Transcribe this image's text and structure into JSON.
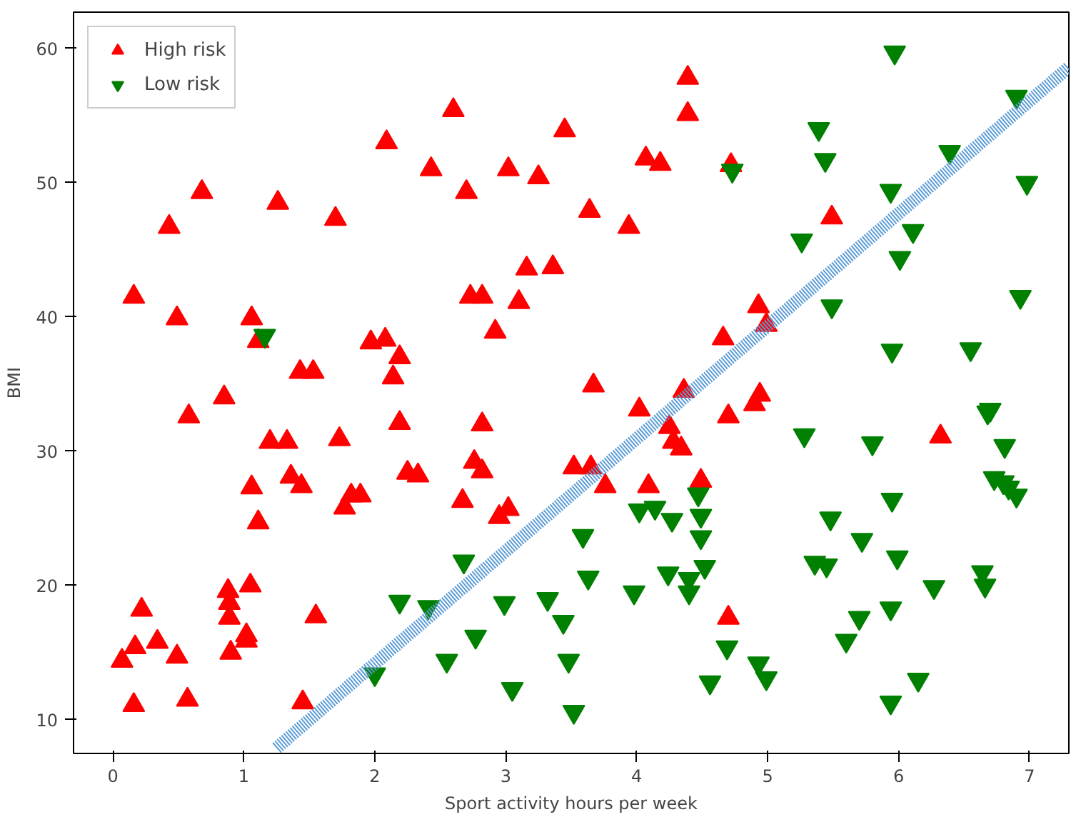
{
  "chart_data": {
    "type": "scatter",
    "xlabel": "Sport activity hours per week",
    "ylabel": "BMI",
    "xlim": [
      -0.3,
      7.3
    ],
    "ylim": [
      7.5,
      62.7
    ],
    "xticks": [
      0,
      1,
      2,
      3,
      4,
      5,
      6,
      7
    ],
    "yticks": [
      10,
      20,
      30,
      40,
      50,
      60
    ],
    "grid": false,
    "legend": "top left",
    "series": [
      {
        "name": "High risk",
        "color": "#ff0000",
        "marker": "triangle",
        "x": [
          0.07,
          0.17,
          0.16,
          0.22,
          0.16,
          0.34,
          0.49,
          0.57,
          0.43,
          0.49,
          0.58,
          0.68,
          0.85,
          0.88,
          0.89,
          0.89,
          0.9,
          1.02,
          1.05,
          1.02,
          1.06,
          1.06,
          1.11,
          1.11,
          1.2,
          1.26,
          1.33,
          1.36,
          1.44,
          1.43,
          1.53,
          1.45,
          1.55,
          1.7,
          1.73,
          1.77,
          1.82,
          1.89,
          1.97,
          2.08,
          2.09,
          2.14,
          2.19,
          2.19,
          2.25,
          2.33,
          2.43,
          2.6,
          2.7,
          2.67,
          2.73,
          2.82,
          2.76,
          2.82,
          2.82,
          2.92,
          2.95,
          3.02,
          3.02,
          3.1,
          3.16,
          3.25,
          3.36,
          3.45,
          3.52,
          3.64,
          3.65,
          3.67,
          3.76,
          3.94,
          4.02,
          4.07,
          4.09,
          4.18,
          4.25,
          4.28,
          4.34,
          4.36,
          4.39,
          4.39,
          4.49,
          4.72,
          4.7,
          4.66,
          4.7,
          4.9,
          4.94,
          4.93,
          4.99,
          5.49,
          6.32
        ],
        "values": [
          14.4,
          15.4,
          11.1,
          18.2,
          41.5,
          15.8,
          14.7,
          11.5,
          46.7,
          39.9,
          32.6,
          49.3,
          34.0,
          19.6,
          18.7,
          17.6,
          15.0,
          16.3,
          20.0,
          15.9,
          27.3,
          39.9,
          24.7,
          38.2,
          30.7,
          48.5,
          30.7,
          28.1,
          27.4,
          35.9,
          35.9,
          11.3,
          17.7,
          47.3,
          30.9,
          25.8,
          26.7,
          26.7,
          38.1,
          38.3,
          53.0,
          35.5,
          37.0,
          32.1,
          28.4,
          28.2,
          51.0,
          55.4,
          49.3,
          26.3,
          41.5,
          41.5,
          29.2,
          28.5,
          32.0,
          38.9,
          25.1,
          25.7,
          51.0,
          41.1,
          43.6,
          50.4,
          43.7,
          53.9,
          28.8,
          47.9,
          28.8,
          34.9,
          27.4,
          46.7,
          33.1,
          51.8,
          27.4,
          51.4,
          31.8,
          30.7,
          30.2,
          34.5,
          57.8,
          55.1,
          27.8,
          51.3,
          32.6,
          38.4,
          17.6,
          33.5,
          34.2,
          40.8,
          39.4,
          47.4,
          31.1
        ]
      },
      {
        "name": "Low risk",
        "color": "#008000",
        "marker": "triangle_down",
        "x": [
          1.16,
          2.0,
          2.19,
          2.41,
          2.55,
          2.68,
          2.77,
          2.99,
          3.05,
          3.32,
          3.44,
          3.48,
          3.52,
          3.59,
          3.63,
          3.98,
          4.02,
          4.14,
          4.24,
          4.27,
          4.4,
          4.4,
          4.47,
          4.49,
          4.49,
          4.52,
          4.56,
          4.69,
          4.73,
          4.93,
          4.99,
          5.26,
          5.28,
          5.39,
          5.44,
          5.36,
          5.45,
          5.48,
          5.49,
          5.6,
          5.7,
          5.72,
          5.8,
          5.97,
          5.94,
          5.95,
          5.95,
          5.94,
          5.94,
          5.99,
          6.01,
          6.11,
          6.15,
          6.39,
          6.27,
          6.55,
          6.64,
          6.66,
          6.68,
          6.7,
          6.73,
          6.8,
          6.81,
          6.84,
          6.9,
          6.9,
          6.93,
          6.98
        ],
        "values": [
          38.6,
          13.4,
          18.8,
          18.4,
          14.4,
          21.8,
          16.2,
          18.7,
          12.3,
          19.0,
          17.3,
          14.4,
          10.6,
          23.7,
          20.6,
          19.5,
          25.6,
          25.8,
          20.9,
          24.9,
          19.5,
          20.5,
          26.8,
          25.2,
          23.6,
          21.4,
          12.8,
          15.4,
          50.9,
          14.2,
          13.1,
          45.7,
          31.2,
          54.0,
          51.7,
          21.7,
          21.5,
          25.0,
          40.8,
          15.9,
          17.6,
          23.4,
          30.6,
          59.7,
          49.4,
          37.5,
          26.4,
          18.3,
          11.3,
          22.1,
          44.4,
          46.4,
          13.0,
          52.3,
          19.9,
          37.6,
          21.0,
          20.0,
          32.9,
          33.1,
          28.0,
          27.7,
          30.4,
          27.3,
          26.7,
          56.4,
          41.5,
          50.0
        ]
      },
      {
        "type": "line",
        "color": "#5b9bd5",
        "line_style": "dotted",
        "x": [
          1.25,
          7.3
        ],
        "values": [
          7.9,
          58.6
        ]
      }
    ]
  }
}
